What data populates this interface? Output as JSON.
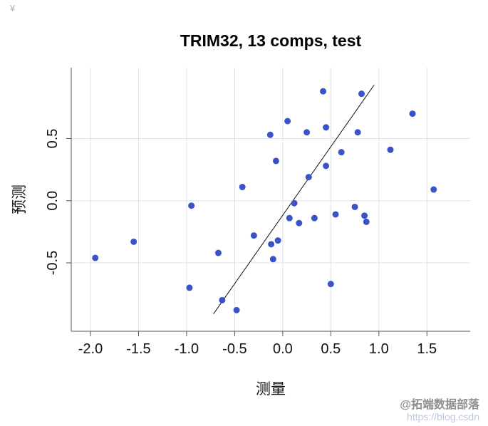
{
  "corner_mark": "¥",
  "watermark": {
    "brand": "@拓端数据部落",
    "url": "https://blog.csdn"
  },
  "chart_data": {
    "type": "scatter",
    "title": "TRIM32, 13 comps, test",
    "xlabel": "测量",
    "ylabel": "预测",
    "xlim": [
      -2.2,
      1.95
    ],
    "ylim": [
      -1.05,
      1.07
    ],
    "x_ticks": [
      -2.0,
      -1.5,
      -1.0,
      -0.5,
      0.0,
      0.5,
      1.0,
      1.5
    ],
    "y_ticks": [
      -0.5,
      0.0,
      0.5
    ],
    "grid": true,
    "grid_color": "#e0e0e0",
    "point_color": "#3c53c7",
    "line_color": "#111111",
    "legend": "none",
    "points": [
      [
        -1.95,
        -0.46
      ],
      [
        -1.55,
        -0.33
      ],
      [
        -0.97,
        -0.7
      ],
      [
        -0.95,
        -0.04
      ],
      [
        -0.67,
        -0.42
      ],
      [
        -0.63,
        -0.8
      ],
      [
        -0.48,
        -0.88
      ],
      [
        -0.42,
        0.11
      ],
      [
        -0.3,
        -0.28
      ],
      [
        -0.13,
        0.53
      ],
      [
        -0.12,
        -0.35
      ],
      [
        -0.1,
        -0.47
      ],
      [
        -0.07,
        0.32
      ],
      [
        -0.05,
        -0.32
      ],
      [
        0.05,
        0.64
      ],
      [
        0.07,
        -0.14
      ],
      [
        0.12,
        -0.02
      ],
      [
        0.17,
        -0.18
      ],
      [
        0.25,
        0.55
      ],
      [
        0.27,
        0.19
      ],
      [
        0.33,
        -0.14
      ],
      [
        0.42,
        0.88
      ],
      [
        0.45,
        0.59
      ],
      [
        0.45,
        0.28
      ],
      [
        0.5,
        -0.67
      ],
      [
        0.55,
        -0.11
      ],
      [
        0.61,
        0.39
      ],
      [
        0.75,
        -0.05
      ],
      [
        0.78,
        0.55
      ],
      [
        0.82,
        0.86
      ],
      [
        0.85,
        -0.12
      ],
      [
        0.87,
        -0.17
      ],
      [
        1.12,
        0.41
      ],
      [
        1.35,
        0.7
      ],
      [
        1.57,
        0.09
      ]
    ],
    "reference_line": {
      "x": [
        -0.72,
        0.95
      ],
      "y": [
        -0.91,
        0.93
      ]
    }
  }
}
